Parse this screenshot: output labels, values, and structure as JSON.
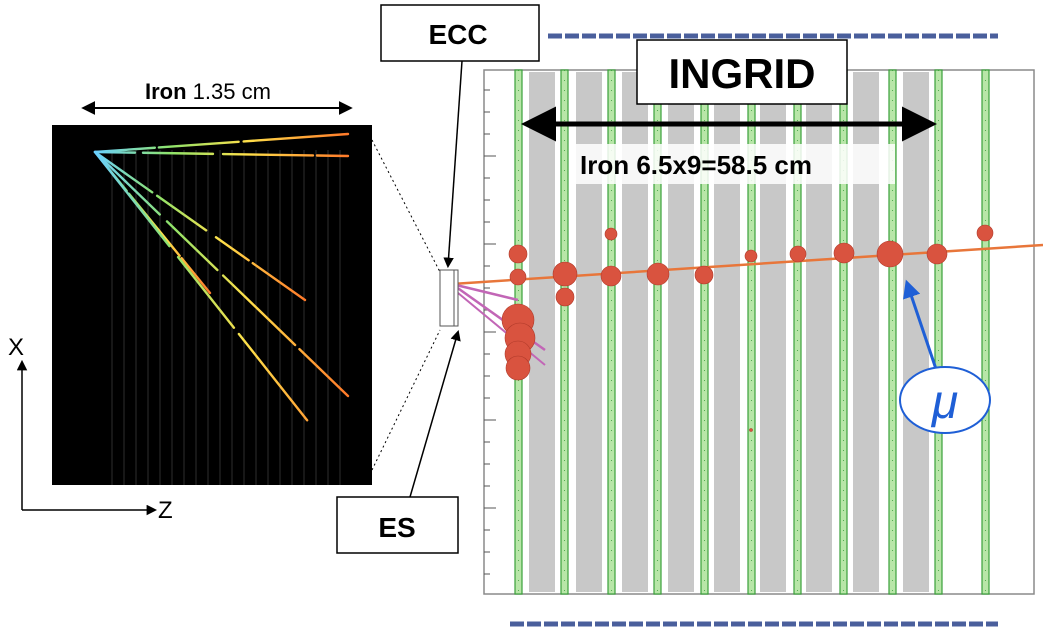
{
  "labels": {
    "iron_ecc_bold": "Iron",
    "iron_ecc_value": " 1.35 cm",
    "ecc": "ECC",
    "es": "ES",
    "ingrid": "INGRID",
    "iron_ingrid": "Iron 6.5x9=58.5 cm",
    "mu": "μ",
    "axis_x": "X",
    "axis_z": "Z"
  },
  "colors": {
    "ecc_background": "#000000",
    "scintillator_green": "#3aa03a",
    "iron_gray": "#c8c8c8",
    "hit_red": "#d9533f",
    "muon_track": "#e8763a",
    "veto_blue": "#4a5f9c",
    "mu_blue": "#1f5fd6",
    "es_track_pink": "#c266b6"
  },
  "icons": {
    "arrows": "double-headed-arrow",
    "mu_pointer": "arrow-pointer"
  }
}
